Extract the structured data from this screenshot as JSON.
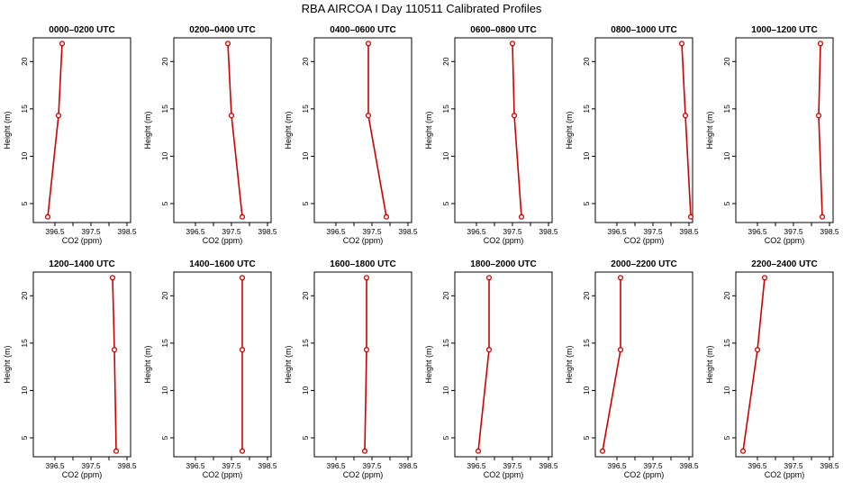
{
  "title": "RBA AIRCOA I  Day 110511  Calibrated Profiles",
  "chart_data": {
    "type": "line",
    "xlabel": "CO2 (ppm)",
    "ylabel": "Height (m)",
    "xlim": [
      395.9,
      398.6
    ],
    "ylim": [
      3,
      22.5
    ],
    "xticks": [
      "396.5",
      "397.5",
      "398.5"
    ],
    "xtick_values": [
      396.5,
      397.0,
      397.5,
      398.0,
      398.5
    ],
    "yticks": [
      "5",
      "10",
      "15",
      "20"
    ],
    "ytick_values": [
      5,
      10,
      15,
      20
    ],
    "heights": [
      3.6,
      14.3,
      21.9
    ],
    "line_color": "#d00000",
    "panels": [
      {
        "title": "0000–0200 UTC",
        "co2": [
          396.3,
          396.6,
          396.7
        ]
      },
      {
        "title": "0200–0400 UTC",
        "co2": [
          397.8,
          397.5,
          397.4
        ]
      },
      {
        "title": "0400–0600 UTC",
        "co2": [
          397.9,
          397.4,
          397.4
        ]
      },
      {
        "title": "0600–0800 UTC",
        "co2": [
          397.75,
          397.55,
          397.5
        ]
      },
      {
        "title": "0800–1000 UTC",
        "co2": [
          398.55,
          398.4,
          398.3
        ]
      },
      {
        "title": "1000–1200 UTC",
        "co2": [
          398.3,
          398.2,
          398.25
        ]
      },
      {
        "title": "1200–1400 UTC",
        "co2": [
          398.2,
          398.15,
          398.1
        ]
      },
      {
        "title": "1400–1600 UTC",
        "co2": [
          397.8,
          397.8,
          397.8
        ]
      },
      {
        "title": "1600–1800 UTC",
        "co2": [
          397.3,
          397.35,
          397.35
        ]
      },
      {
        "title": "1800–2000 UTC",
        "co2": [
          396.55,
          396.85,
          396.85
        ]
      },
      {
        "title": "2000–2200 UTC",
        "co2": [
          396.1,
          396.6,
          396.6
        ]
      },
      {
        "title": "2200–2400 UTC",
        "co2": [
          396.1,
          396.5,
          396.7
        ]
      }
    ]
  }
}
